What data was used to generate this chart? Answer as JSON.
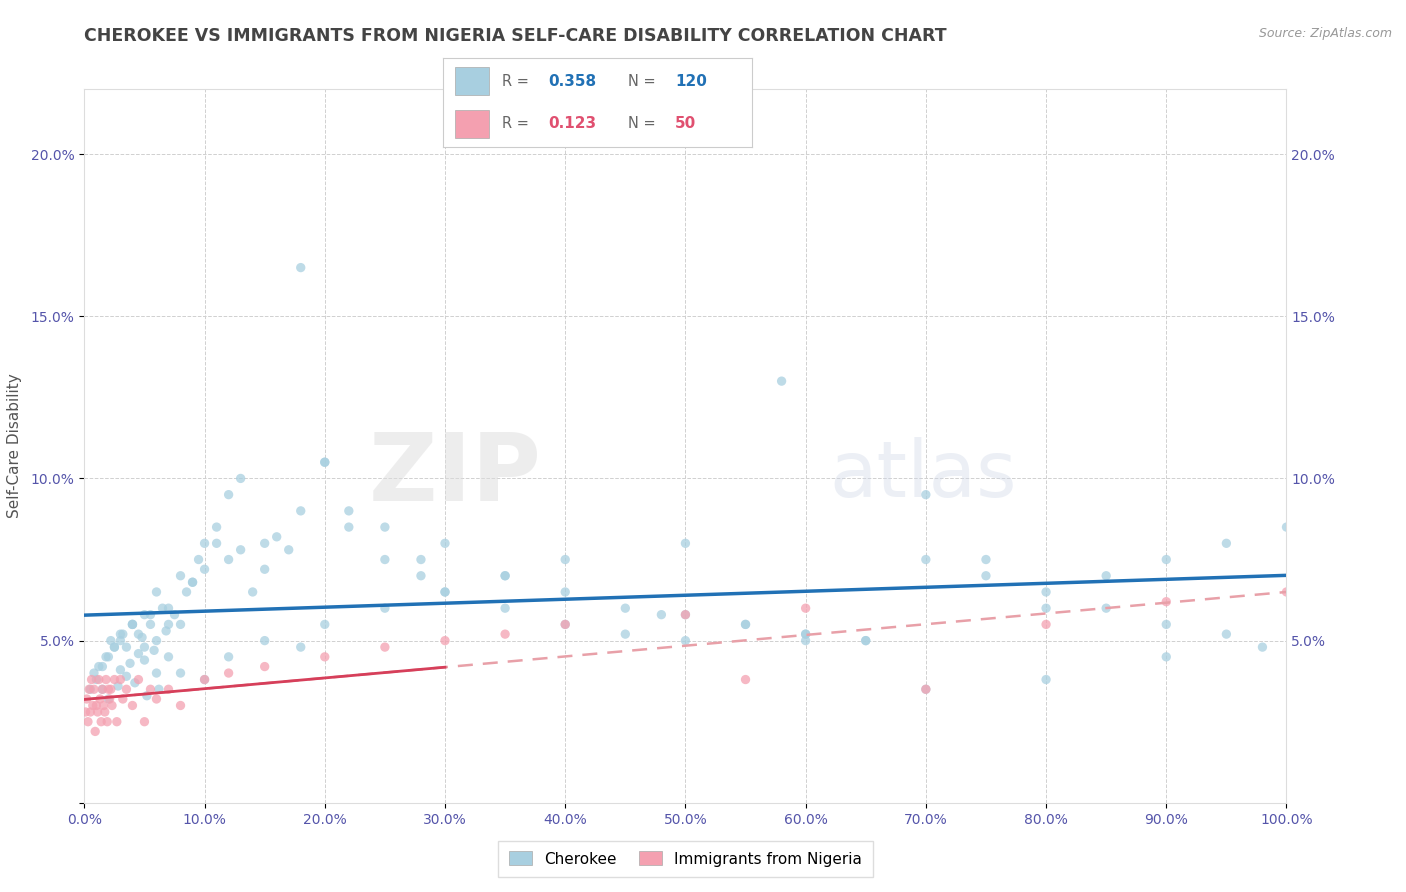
{
  "title": "CHEROKEE VS IMMIGRANTS FROM NIGERIA SELF-CARE DISABILITY CORRELATION CHART",
  "source": "Source: ZipAtlas.com",
  "ylabel": "Self-Care Disability",
  "watermark_zip": "ZIP",
  "watermark_atlas": "atlas",
  "cherokee_R": 0.358,
  "cherokee_N": 120,
  "nigeria_R": 0.123,
  "nigeria_N": 50,
  "cherokee_color": "#a8cfe0",
  "cherokee_line_color": "#2171b5",
  "nigeria_color": "#f4a0b0",
  "nigeria_line_color": "#d63f5a",
  "nigeria_dash_color": "#e8a0a8",
  "r_color_cherokee": "#2171b5",
  "r_color_nigeria": "#e05070",
  "bg_color": "#ffffff",
  "grid_color": "#d0d0d0",
  "title_color": "#444444",
  "title_fontsize": 12.5,
  "tick_color": "#5555aa",
  "cherokee_x": [
    0.5,
    0.8,
    1.0,
    1.2,
    1.5,
    1.8,
    2.0,
    2.2,
    2.5,
    2.8,
    3.0,
    3.2,
    3.5,
    3.8,
    4.0,
    4.2,
    4.5,
    4.8,
    5.0,
    5.2,
    5.5,
    5.8,
    6.0,
    6.2,
    6.5,
    6.8,
    7.0,
    7.5,
    8.0,
    8.5,
    9.0,
    9.5,
    10.0,
    11.0,
    12.0,
    13.0,
    14.0,
    15.0,
    16.0,
    17.0,
    18.0,
    20.0,
    22.0,
    25.0,
    28.0,
    30.0,
    35.0,
    40.0,
    45.0,
    50.0,
    55.0,
    58.0,
    60.0,
    65.0,
    70.0,
    75.0,
    80.0,
    85.0,
    90.0,
    95.0,
    100.0,
    2.0,
    3.0,
    3.5,
    4.0,
    4.5,
    5.0,
    5.5,
    6.0,
    7.0,
    8.0,
    9.0,
    10.0,
    11.0,
    12.0,
    13.0,
    15.0,
    18.0,
    20.0,
    22.0,
    25.0,
    28.0,
    30.0,
    35.0,
    40.0,
    45.0,
    48.0,
    50.0,
    55.0,
    60.0,
    65.0,
    70.0,
    75.0,
    80.0,
    85.0,
    90.0,
    95.0,
    98.0,
    1.5,
    2.5,
    3.0,
    4.0,
    5.0,
    6.0,
    7.0,
    8.0,
    10.0,
    12.0,
    15.0,
    18.0,
    20.0,
    25.0,
    30.0,
    35.0,
    40.0,
    50.0,
    60.0,
    70.0,
    80.0,
    90.0
  ],
  "cherokee_y": [
    3.5,
    4.0,
    3.8,
    4.2,
    3.5,
    4.5,
    3.2,
    5.0,
    4.8,
    3.6,
    4.1,
    5.2,
    3.9,
    4.3,
    5.5,
    3.7,
    4.6,
    5.1,
    4.4,
    3.3,
    5.8,
    4.7,
    4.0,
    3.5,
    6.0,
    5.3,
    5.5,
    5.8,
    7.0,
    6.5,
    6.8,
    7.5,
    8.0,
    8.5,
    7.5,
    7.8,
    6.5,
    7.2,
    8.2,
    7.8,
    16.5,
    10.5,
    9.0,
    8.5,
    7.5,
    8.0,
    7.0,
    6.5,
    6.0,
    5.8,
    5.5,
    13.0,
    5.2,
    5.0,
    9.5,
    7.5,
    6.0,
    7.0,
    7.5,
    8.0,
    8.5,
    4.5,
    5.0,
    4.8,
    5.5,
    5.2,
    5.8,
    5.5,
    6.5,
    6.0,
    5.5,
    6.8,
    7.2,
    8.0,
    9.5,
    10.0,
    8.0,
    9.0,
    10.5,
    8.5,
    7.5,
    7.0,
    6.5,
    6.0,
    5.5,
    5.2,
    5.8,
    5.0,
    5.5,
    5.2,
    5.0,
    7.5,
    7.0,
    6.5,
    6.0,
    5.5,
    5.2,
    4.8,
    4.2,
    4.8,
    5.2,
    5.5,
    4.8,
    5.0,
    4.5,
    4.0,
    3.8,
    4.5,
    5.0,
    4.8,
    5.5,
    6.0,
    6.5,
    7.0,
    7.5,
    8.0,
    5.0,
    3.5,
    3.8,
    4.5
  ],
  "nigeria_x": [
    0.1,
    0.2,
    0.3,
    0.4,
    0.5,
    0.6,
    0.7,
    0.8,
    0.9,
    1.0,
    1.1,
    1.2,
    1.3,
    1.4,
    1.5,
    1.6,
    1.7,
    1.8,
    1.9,
    2.0,
    2.1,
    2.2,
    2.3,
    2.5,
    2.7,
    3.0,
    3.2,
    3.5,
    4.0,
    4.5,
    5.0,
    5.5,
    6.0,
    7.0,
    8.0,
    10.0,
    12.0,
    15.0,
    20.0,
    25.0,
    30.0,
    35.0,
    40.0,
    50.0,
    60.0,
    70.0,
    80.0,
    90.0,
    100.0,
    55.0
  ],
  "nigeria_y": [
    2.8,
    3.2,
    2.5,
    3.5,
    2.8,
    3.8,
    3.0,
    3.5,
    2.2,
    3.0,
    2.8,
    3.8,
    3.2,
    2.5,
    3.5,
    3.0,
    2.8,
    3.8,
    2.5,
    3.5,
    3.2,
    3.5,
    3.0,
    3.8,
    2.5,
    3.8,
    3.2,
    3.5,
    3.0,
    3.8,
    2.5,
    3.5,
    3.2,
    3.5,
    3.0,
    3.8,
    4.0,
    4.2,
    4.5,
    4.8,
    5.0,
    5.2,
    5.5,
    5.8,
    6.0,
    3.5,
    5.5,
    6.2,
    6.5,
    3.8
  ],
  "xlim": [
    0,
    100
  ],
  "ylim": [
    0,
    22
  ],
  "xticks": [
    0,
    10,
    20,
    30,
    40,
    50,
    60,
    70,
    80,
    90,
    100
  ],
  "yticks": [
    0,
    5,
    10,
    15,
    20
  ],
  "ytick_labels_left": [
    "",
    "5.0%",
    "10.0%",
    "15.0%",
    "20.0%"
  ],
  "ytick_labels_right": [
    "",
    "5.0%",
    "10.0%",
    "15.0%",
    "20.0%"
  ],
  "xtick_labels": [
    "0.0%",
    "10.0%",
    "20.0%",
    "30.0%",
    "40.0%",
    "50.0%",
    "60.0%",
    "70.0%",
    "80.0%",
    "90.0%",
    "100.0%"
  ]
}
